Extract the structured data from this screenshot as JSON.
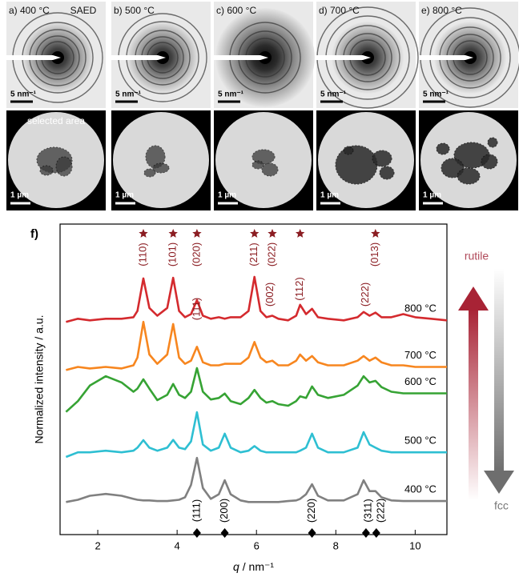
{
  "panels": [
    {
      "label": "a) 400 °C",
      "saed_scale": "5 nm⁻¹",
      "area_scale": "1 µm"
    },
    {
      "label": "b) 500 °C",
      "saed_scale": "5 nm⁻¹",
      "area_scale": "1 µm"
    },
    {
      "label": "c) 600 °C",
      "saed_scale": "5 nm⁻¹",
      "area_scale": "1 µm"
    },
    {
      "label": "d) 700 °C",
      "saed_scale": "5 nm⁻¹",
      "area_scale": "1 µm"
    },
    {
      "label": "e) 800 °C",
      "saed_scale": "5 nm⁻¹",
      "area_scale": "1 µm"
    }
  ],
  "saed_label": "SAED",
  "area_label": "selected area",
  "chart_data": {
    "type": "line",
    "panel_label": "f)",
    "xlabel_symbol": "q",
    "xlabel_unit": "/ nm⁻¹",
    "ylabel": "Normalized intensity / a.u.",
    "xlim": [
      1.05,
      10.8
    ],
    "ylim": [
      0,
      10
    ],
    "xticks": [
      2,
      4,
      6,
      8,
      10
    ],
    "x": [
      1.2,
      1.5,
      1.8,
      2.2,
      2.6,
      2.9,
      3.0,
      3.15,
      3.3,
      3.5,
      3.75,
      3.9,
      4.05,
      4.2,
      4.35,
      4.5,
      4.65,
      4.85,
      5.05,
      5.2,
      5.35,
      5.6,
      5.8,
      5.95,
      6.1,
      6.25,
      6.4,
      6.55,
      6.8,
      7.0,
      7.1,
      7.25,
      7.4,
      7.55,
      7.8,
      8.2,
      8.55,
      8.7,
      8.85,
      9.0,
      9.15,
      9.4,
      9.7,
      10.0,
      10.4,
      10.8
    ],
    "series": [
      {
        "name": "800 °C",
        "color": "#d42a2e",
        "values": [
          6.85,
          6.95,
          6.9,
          6.95,
          6.95,
          7.0,
          7.2,
          8.25,
          7.3,
          7.05,
          7.3,
          8.27,
          7.2,
          7.0,
          7.1,
          7.55,
          7.05,
          6.95,
          7.0,
          6.95,
          7.0,
          7.0,
          7.2,
          8.3,
          7.2,
          7.0,
          7.05,
          6.95,
          6.9,
          7.05,
          7.4,
          7.1,
          7.27,
          7.0,
          6.95,
          6.9,
          7.0,
          7.17,
          7.05,
          7.15,
          7.0,
          7.0,
          7.1,
          7.0,
          6.95,
          6.9
        ]
      },
      {
        "name": "700 °C",
        "color": "#f7861f",
        "values": [
          5.3,
          5.4,
          5.35,
          5.4,
          5.35,
          5.45,
          5.7,
          6.85,
          5.8,
          5.5,
          5.8,
          6.78,
          5.7,
          5.5,
          5.6,
          6.05,
          5.55,
          5.45,
          5.45,
          5.5,
          5.5,
          5.5,
          5.7,
          6.2,
          5.7,
          5.55,
          5.6,
          5.45,
          5.45,
          5.6,
          5.8,
          5.6,
          5.75,
          5.55,
          5.45,
          5.45,
          5.6,
          5.75,
          5.6,
          5.7,
          5.55,
          5.45,
          5.45,
          5.4,
          5.4,
          5.4
        ]
      },
      {
        "name": "600 °C",
        "color": "#36a334",
        "values": [
          3.95,
          4.3,
          4.8,
          5.1,
          4.9,
          4.6,
          4.7,
          5.0,
          4.7,
          4.33,
          4.5,
          4.85,
          4.5,
          4.4,
          4.6,
          5.36,
          4.6,
          4.35,
          4.4,
          4.54,
          4.3,
          4.2,
          4.4,
          4.66,
          4.4,
          4.25,
          4.3,
          4.2,
          4.15,
          4.3,
          4.45,
          4.4,
          4.77,
          4.5,
          4.4,
          4.5,
          4.8,
          5.1,
          4.9,
          4.95,
          4.75,
          4.6,
          4.55,
          4.55,
          4.55,
          4.55
        ]
      },
      {
        "name": "500 °C",
        "color": "#2ebfd2",
        "values": [
          2.5,
          2.65,
          2.65,
          2.7,
          2.65,
          2.7,
          2.8,
          3.04,
          2.8,
          2.7,
          2.8,
          3.05,
          2.8,
          2.75,
          3.0,
          3.94,
          2.9,
          2.7,
          2.8,
          3.25,
          2.8,
          2.65,
          2.7,
          2.85,
          2.7,
          2.65,
          2.65,
          2.65,
          2.65,
          2.65,
          2.7,
          2.8,
          3.25,
          2.8,
          2.65,
          2.65,
          2.8,
          3.3,
          2.9,
          2.8,
          2.7,
          2.65,
          2.65,
          2.65,
          2.65,
          2.65
        ]
      },
      {
        "name": "400 °C",
        "color": "#808080",
        "values": [
          1.05,
          1.12,
          1.25,
          1.31,
          1.25,
          1.15,
          1.12,
          1.1,
          1.1,
          1.08,
          1.08,
          1.1,
          1.12,
          1.2,
          1.6,
          2.47,
          1.5,
          1.15,
          1.3,
          1.75,
          1.3,
          1.1,
          1.05,
          1.05,
          1.05,
          1.05,
          1.05,
          1.05,
          1.08,
          1.1,
          1.15,
          1.3,
          1.62,
          1.25,
          1.1,
          1.1,
          1.3,
          1.75,
          1.4,
          1.4,
          1.2,
          1.1,
          1.08,
          1.08,
          1.08,
          1.08
        ]
      }
    ],
    "rutile": {
      "color": "#8b1d22",
      "stars": [
        3.15,
        3.9,
        4.5,
        5.95,
        6.4,
        7.1,
        9.0
      ],
      "labels": [
        {
          "text": "(110)",
          "x": 3.15
        },
        {
          "text": "(101)",
          "x": 3.9
        },
        {
          "text": "(020)",
          "x": 4.5
        },
        {
          "text": "(111)",
          "x": 4.5
        },
        {
          "text": "(211)",
          "x": 5.95
        },
        {
          "text": "(022)",
          "x": 6.4
        },
        {
          "text": "(002)",
          "x": 6.35
        },
        {
          "text": "(112)",
          "x": 7.1
        },
        {
          "text": "(013)",
          "x": 9.0
        },
        {
          "text": "(222)",
          "x": 8.75
        }
      ]
    },
    "fcc": {
      "markers": [
        4.5,
        5.2,
        7.4,
        8.76,
        9.02
      ],
      "labels": [
        {
          "text": "(111)",
          "x": 4.5
        },
        {
          "text": "(200)",
          "x": 5.2
        },
        {
          "text": "(220)",
          "x": 7.4
        },
        {
          "text": "(311)",
          "x": 8.82
        },
        {
          "text": "(222)",
          "x": 9.15
        }
      ]
    },
    "arrow_labels": {
      "up": "rutile",
      "down": "fcc"
    }
  }
}
